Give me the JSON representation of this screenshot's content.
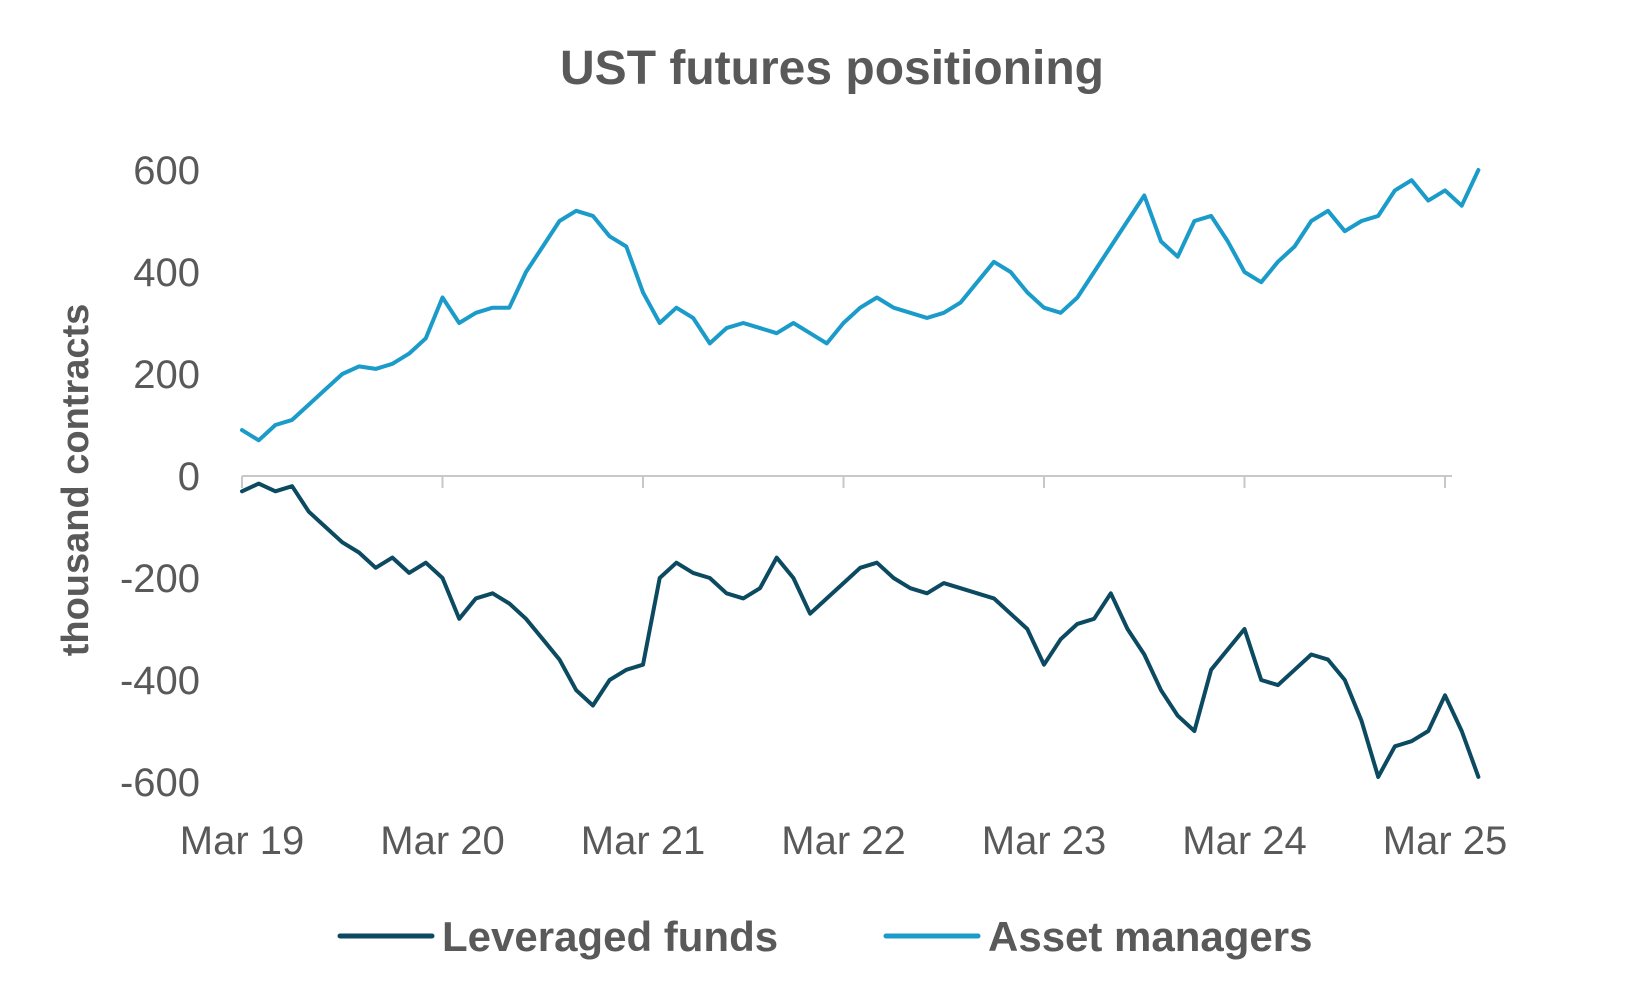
{
  "chart_data": {
    "type": "line",
    "title": "UST futures positioning",
    "ylabel": "thousand contracts",
    "xlabel": "",
    "ylim": [
      -600,
      600
    ],
    "yticks": [
      600,
      400,
      200,
      0,
      -200,
      -400,
      -600
    ],
    "ytick_labels": [
      "600",
      "400",
      "200",
      "0",
      "-200",
      "-400",
      "-600"
    ],
    "xticks": [
      "Mar 19",
      "Mar 20",
      "Mar 21",
      "Mar 22",
      "Mar 23",
      "Mar 24",
      "Mar 25"
    ],
    "xtick_years": [
      2019,
      2020,
      2021,
      2022,
      2023,
      2024,
      2025
    ],
    "xlim": [
      "2019-03",
      "2025-06"
    ],
    "grid": false,
    "legend_position": "bottom",
    "series": [
      {
        "name": "Leveraged funds",
        "color": "#0b4a60",
        "x": [
          "2019-03",
          "2019-04",
          "2019-05",
          "2019-06",
          "2019-07",
          "2019-08",
          "2019-09",
          "2019-10",
          "2019-11",
          "2019-12",
          "2020-01",
          "2020-02",
          "2020-03",
          "2020-04",
          "2020-05",
          "2020-06",
          "2020-07",
          "2020-08",
          "2020-09",
          "2020-10",
          "2020-11",
          "2020-12",
          "2021-01",
          "2021-02",
          "2021-03",
          "2021-04",
          "2021-05",
          "2021-06",
          "2021-07",
          "2021-08",
          "2021-09",
          "2021-10",
          "2021-11",
          "2021-12",
          "2022-01",
          "2022-02",
          "2022-03",
          "2022-04",
          "2022-05",
          "2022-06",
          "2022-07",
          "2022-08",
          "2022-09",
          "2022-10",
          "2022-11",
          "2022-12",
          "2023-01",
          "2023-02",
          "2023-03",
          "2023-04",
          "2023-05",
          "2023-06",
          "2023-07",
          "2023-08",
          "2023-09",
          "2023-10",
          "2023-11",
          "2023-12",
          "2024-01",
          "2024-02",
          "2024-03",
          "2024-04",
          "2024-05",
          "2024-06",
          "2024-07",
          "2024-08",
          "2024-09",
          "2024-10",
          "2024-11",
          "2024-12",
          "2025-01",
          "2025-02",
          "2025-03",
          "2025-04",
          "2025-05"
        ],
        "values": [
          -30,
          -15,
          -30,
          -20,
          -70,
          -100,
          -130,
          -150,
          -180,
          -160,
          -190,
          -170,
          -200,
          -280,
          -240,
          -230,
          -250,
          -280,
          -320,
          -360,
          -420,
          -450,
          -400,
          -380,
          -370,
          -200,
          -170,
          -190,
          -200,
          -230,
          -240,
          -220,
          -160,
          -200,
          -270,
          -240,
          -210,
          -180,
          -170,
          -200,
          -220,
          -230,
          -210,
          -220,
          -230,
          -240,
          -270,
          -300,
          -370,
          -320,
          -290,
          -280,
          -230,
          -300,
          -350,
          -420,
          -470,
          -500,
          -380,
          -340,
          -300,
          -400,
          -410,
          -380,
          -350,
          -360,
          -400,
          -480,
          -590,
          -530,
          -520,
          -500,
          -430,
          -500,
          -590
        ]
      },
      {
        "name": "Asset managers",
        "color": "#1a9bc9",
        "x": [
          "2019-03",
          "2019-04",
          "2019-05",
          "2019-06",
          "2019-07",
          "2019-08",
          "2019-09",
          "2019-10",
          "2019-11",
          "2019-12",
          "2020-01",
          "2020-02",
          "2020-03",
          "2020-04",
          "2020-05",
          "2020-06",
          "2020-07",
          "2020-08",
          "2020-09",
          "2020-10",
          "2020-11",
          "2020-12",
          "2021-01",
          "2021-02",
          "2021-03",
          "2021-04",
          "2021-05",
          "2021-06",
          "2021-07",
          "2021-08",
          "2021-09",
          "2021-10",
          "2021-11",
          "2021-12",
          "2022-01",
          "2022-02",
          "2022-03",
          "2022-04",
          "2022-05",
          "2022-06",
          "2022-07",
          "2022-08",
          "2022-09",
          "2022-10",
          "2022-11",
          "2022-12",
          "2023-01",
          "2023-02",
          "2023-03",
          "2023-04",
          "2023-05",
          "2023-06",
          "2023-07",
          "2023-08",
          "2023-09",
          "2023-10",
          "2023-11",
          "2023-12",
          "2024-01",
          "2024-02",
          "2024-03",
          "2024-04",
          "2024-05",
          "2024-06",
          "2024-07",
          "2024-08",
          "2024-09",
          "2024-10",
          "2024-11",
          "2024-12",
          "2025-01",
          "2025-02",
          "2025-03",
          "2025-04",
          "2025-05"
        ],
        "values": [
          90,
          70,
          100,
          110,
          140,
          170,
          200,
          215,
          210,
          220,
          240,
          270,
          350,
          300,
          320,
          330,
          330,
          400,
          450,
          500,
          520,
          510,
          470,
          450,
          360,
          300,
          330,
          310,
          260,
          290,
          300,
          290,
          280,
          300,
          280,
          260,
          300,
          330,
          350,
          330,
          320,
          310,
          320,
          340,
          380,
          420,
          400,
          360,
          330,
          320,
          350,
          400,
          450,
          500,
          550,
          460,
          430,
          500,
          510,
          460,
          400,
          380,
          420,
          450,
          500,
          520,
          480,
          500,
          510,
          560,
          580,
          540,
          560,
          530,
          600
        ]
      }
    ]
  }
}
